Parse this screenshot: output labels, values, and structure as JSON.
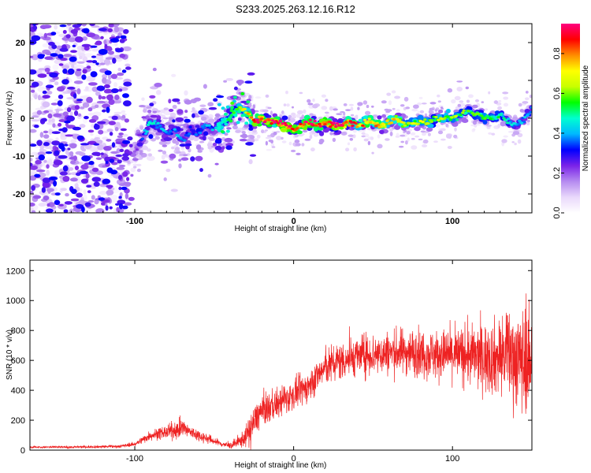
{
  "title": "S233.2025.263.12.16.R12",
  "chart_data": [
    {
      "type": "heatmap",
      "xlabel": "Height of straight line (km)",
      "ylabel": "Frequency (Hz)",
      "xlim": [
        -166,
        150
      ],
      "ylim": [
        -25,
        25
      ],
      "x_ticks": [
        -100,
        0,
        100
      ],
      "y_ticks": [
        -20,
        -10,
        0,
        10,
        20
      ],
      "colorbar": {
        "label": "Normalized spectral amplitude",
        "range": [
          0.0,
          0.95
        ],
        "ticks": [
          "0.0",
          "0.2",
          "0.4",
          "0.6",
          "0.8"
        ],
        "colors": [
          "#ffffff",
          "#e9d8fb",
          "#b58af0",
          "#7a22e8",
          "#0000ff",
          "#00b8ff",
          "#00ffd0",
          "#00ff00",
          "#c8ff00",
          "#ffff00",
          "#ff8c00",
          "#ff0000",
          "#ff007f"
        ]
      },
      "ridge": {
        "x": [
          -100,
          -95,
          -90,
          -85,
          -80,
          -75,
          -70,
          -65,
          -60,
          -55,
          -50,
          -45,
          -40,
          -35,
          -30,
          -25,
          -20,
          -15,
          -10,
          -5,
          0,
          5,
          10,
          15,
          20,
          25,
          30,
          35,
          40,
          45,
          50,
          55,
          60,
          65,
          70,
          75,
          80,
          85,
          90,
          95,
          100,
          105,
          110,
          115,
          120,
          125,
          130,
          135,
          140,
          145,
          150
        ],
        "freq": [
          -9,
          -5,
          -1,
          -2,
          -4,
          -3,
          -6,
          -3,
          -4,
          -2,
          -3,
          -1,
          0,
          3,
          2,
          -1,
          0,
          -1,
          -1,
          -2,
          -3,
          -2,
          -1,
          -2,
          -1,
          -2,
          -2,
          -1,
          -2,
          -1,
          -1,
          -2,
          -1,
          0,
          -2,
          -1,
          -1,
          -1,
          0,
          0,
          0,
          1,
          2,
          1,
          0,
          0,
          1,
          -1,
          -2,
          0,
          3
        ],
        "amp": [
          0.2,
          0.35,
          0.45,
          0.42,
          0.4,
          0.38,
          0.4,
          0.35,
          0.33,
          0.38,
          0.4,
          0.45,
          0.55,
          0.6,
          0.7,
          0.88,
          0.92,
          0.9,
          0.93,
          0.92,
          0.9,
          0.88,
          0.92,
          0.9,
          0.88,
          0.92,
          0.9,
          0.85,
          0.8,
          0.8,
          0.78,
          0.75,
          0.7,
          0.72,
          0.68,
          0.65,
          0.65,
          0.6,
          0.6,
          0.62,
          0.6,
          0.58,
          0.55,
          0.55,
          0.58,
          0.55,
          0.5,
          0.45,
          0.42,
          0.4,
          0.38
        ]
      }
    },
    {
      "type": "line",
      "xlabel": "Height of straight line (km)",
      "ylabel": "SNR (10 * v/v)",
      "xlim": [
        -166,
        150
      ],
      "ylim": [
        0,
        1270
      ],
      "x_ticks": [
        -100,
        0,
        100
      ],
      "y_ticks": [
        0,
        200,
        400,
        600,
        800,
        1000,
        1200
      ],
      "series": [
        {
          "name": "SNR",
          "color": "#ee2222",
          "envelope": {
            "x": [
              -166,
              -140,
              -110,
              -100,
              -95,
              -90,
              -85,
              -80,
              -75,
              -70,
              -65,
              -60,
              -55,
              -50,
              -45,
              -40,
              -35,
              -30,
              -27,
              -25,
              -23,
              -20,
              -15,
              -10,
              -5,
              0,
              5,
              10,
              15,
              20,
              25,
              30,
              40,
              50,
              60,
              70,
              80,
              90,
              100,
              110,
              120,
              130,
              135,
              140,
              145,
              150
            ],
            "mean": [
              20,
              20,
              25,
              40,
              70,
              100,
              110,
              120,
              130,
              150,
              120,
              100,
              80,
              60,
              40,
              30,
              50,
              90,
              150,
              180,
              230,
              260,
              290,
              310,
              340,
              370,
              400,
              430,
              500,
              550,
              580,
              600,
              630,
              640,
              650,
              660,
              650,
              640,
              640,
              630,
              620,
              620,
              640,
              620,
              600,
              600
            ],
            "spread": [
              10,
              12,
              15,
              20,
              40,
              50,
              60,
              70,
              80,
              100,
              70,
              60,
              50,
              40,
              30,
              30,
              60,
              100,
              200,
              150,
              160,
              160,
              160,
              160,
              150,
              150,
              150,
              160,
              160,
              180,
              200,
              200,
              200,
              220,
              220,
              230,
              240,
              250,
              260,
              300,
              350,
              400,
              450,
              500,
              550,
              400
            ]
          }
        }
      ]
    }
  ]
}
